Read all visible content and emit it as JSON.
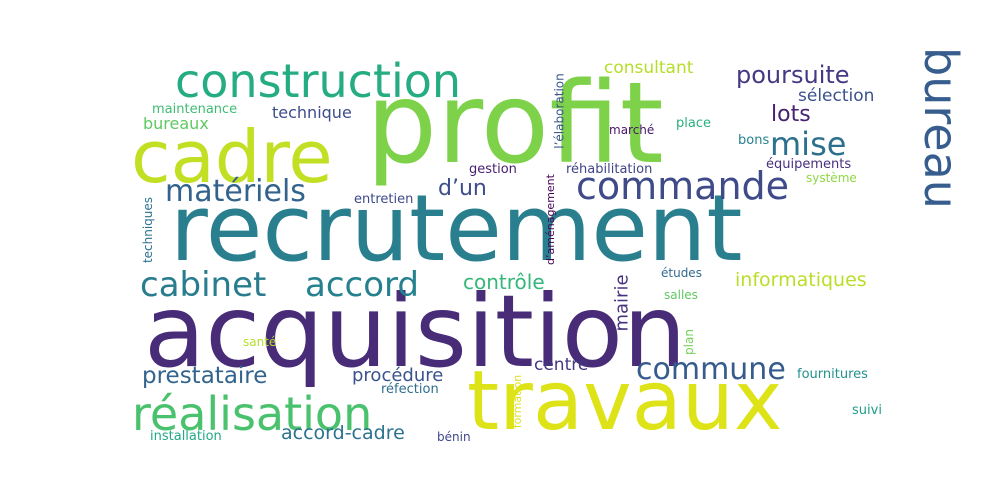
{
  "words": [
    {
      "text": "acquisition",
      "color": "#482c78"
    },
    {
      "text": "recrutement",
      "color": "#2a7f8e"
    },
    {
      "text": "profit",
      "color": "#7ed24a"
    },
    {
      "text": "travaux",
      "color": "#dde317"
    },
    {
      "text": "cadre",
      "color": "#c2df23"
    },
    {
      "text": "construction",
      "color": "#25ac82"
    },
    {
      "text": "réalisation",
      "color": "#4ac16d"
    },
    {
      "text": "commande",
      "color": "#3f4a89"
    },
    {
      "text": "bureau",
      "color": "#365d8d"
    },
    {
      "text": "cabinet",
      "color": "#287c8e"
    },
    {
      "text": "accord",
      "color": "#26818e"
    },
    {
      "text": "matériels",
      "color": "#33628d"
    },
    {
      "text": "commune",
      "color": "#365c8d"
    },
    {
      "text": "mise",
      "color": "#2d708e"
    },
    {
      "text": "poursuite",
      "color": "#443983"
    },
    {
      "text": "prestataire",
      "color": "#32648e"
    },
    {
      "text": "lots",
      "color": "#482172"
    },
    {
      "text": "d’un",
      "color": "#3d4d8a"
    },
    {
      "text": "contrôle",
      "color": "#35b779"
    },
    {
      "text": "informatiques",
      "color": "#b8de29"
    },
    {
      "text": "procédure",
      "color": "#3b528b"
    },
    {
      "text": "accord-cadre",
      "color": "#2c728e"
    },
    {
      "text": "consultant",
      "color": "#b5de2b"
    },
    {
      "text": "sélection",
      "color": "#3b518b"
    },
    {
      "text": "bureaux",
      "color": "#5ec962"
    },
    {
      "text": "technique",
      "color": "#3e4c8a"
    },
    {
      "text": "centre",
      "color": "#453781"
    },
    {
      "text": "mairie",
      "color": "#46327e"
    },
    {
      "text": "réhabilitation",
      "color": "#414487"
    },
    {
      "text": "équipements",
      "color": "#46307e"
    },
    {
      "text": "maintenance",
      "color": "#3fbc73"
    },
    {
      "text": "gestion",
      "color": "#482071"
    },
    {
      "text": "entretien",
      "color": "#3e4989"
    },
    {
      "text": "marché",
      "color": "#481668"
    },
    {
      "text": "place",
      "color": "#2ab07f"
    },
    {
      "text": "bons",
      "color": "#26828e"
    },
    {
      "text": "système",
      "color": "#8fd744"
    },
    {
      "text": "l’élaboration",
      "color": "#39568c"
    },
    {
      "text": "d’aménagement",
      "color": "#440154"
    },
    {
      "text": "études",
      "color": "#31688e"
    },
    {
      "text": "salles",
      "color": "#5ec962"
    },
    {
      "text": "santé",
      "color": "#b5de2b"
    },
    {
      "text": "plan",
      "color": "#73d056"
    },
    {
      "text": "fournitures",
      "color": "#21918c"
    },
    {
      "text": "réfection",
      "color": "#2e6e8e"
    },
    {
      "text": "formation",
      "color": "#dde318"
    },
    {
      "text": "installation",
      "color": "#22a884"
    },
    {
      "text": "bénin",
      "color": "#3f4889"
    },
    {
      "text": "suivi",
      "color": "#1f9e89"
    },
    {
      "text": "techniques",
      "color": "#2c738e"
    }
  ]
}
